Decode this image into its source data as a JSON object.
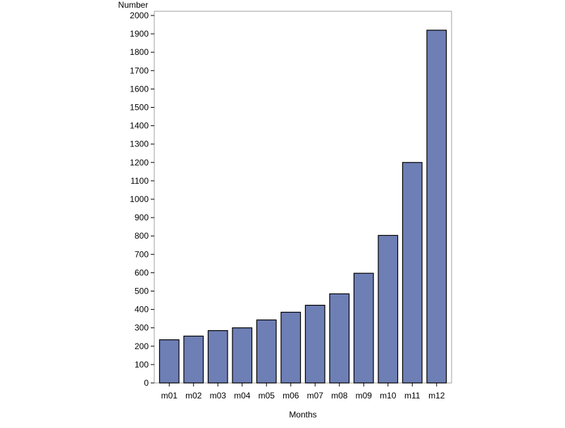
{
  "chart_data": {
    "type": "bar",
    "title": "",
    "xlabel": "Months",
    "ylabel": "Number",
    "categories": [
      "m01",
      "m02",
      "m03",
      "m04",
      "m05",
      "m06",
      "m07",
      "m08",
      "m09",
      "m10",
      "m11",
      "m12"
    ],
    "values": [
      235,
      255,
      285,
      300,
      343,
      385,
      423,
      485,
      597,
      803,
      1200,
      1920
    ],
    "ylim": [
      0,
      2000
    ],
    "yticks": [
      0,
      100,
      200,
      300,
      400,
      500,
      600,
      700,
      800,
      900,
      1000,
      1100,
      1200,
      1300,
      1400,
      1500,
      1600,
      1700,
      1800,
      1900,
      2000
    ],
    "grid": false,
    "legend": "none",
    "colors": {
      "bar_fill": "#6e7fb6",
      "bar_stroke": "#000000",
      "frame": "#a0a0a0",
      "axis": "#000000"
    }
  }
}
